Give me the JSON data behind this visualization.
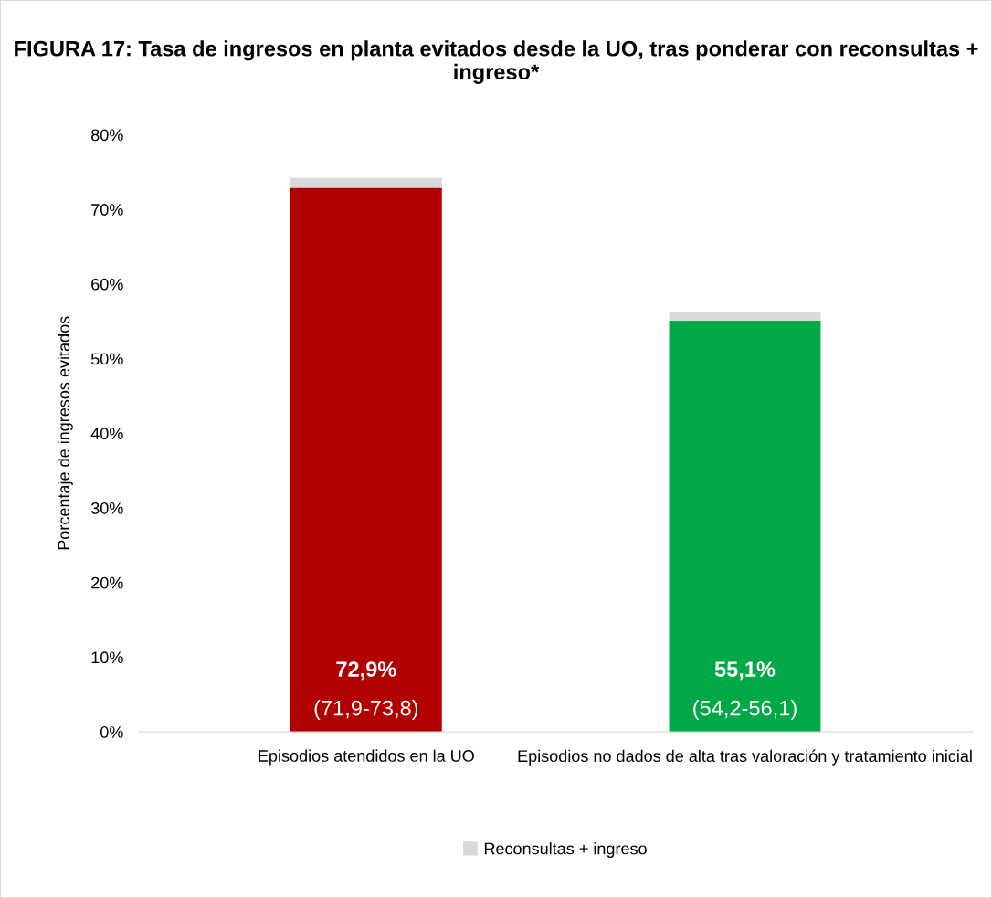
{
  "chart_data": {
    "type": "bar",
    "title": "FIGURA 17: Tasa de ingresos en planta evitados desde la UO, tras ponderar con reconsultas + ingreso*",
    "ylabel": "Porcentaje de ingresos evitados",
    "categories": [
      "Episodios atendidos en la UO",
      "Episodios no dados de alta tras valoración y tratamiento inicial"
    ],
    "stacked": true,
    "series": [
      {
        "colors": [
          "#b00000",
          "#00a848"
        ],
        "values": [
          72.9,
          55.1
        ],
        "value_labels": [
          "72,9%\n(71,9-73,8)",
          "55,1%\n(54,2-56,1)"
        ]
      },
      {
        "name": "Reconsultas + ingreso",
        "color": "#d9d9d9",
        "values": [
          1.3,
          1.1
        ]
      }
    ],
    "ylim": [
      0,
      80
    ],
    "yticks": [
      {
        "value": 0,
        "label": "0%"
      },
      {
        "value": 10,
        "label": "10%"
      },
      {
        "value": 20,
        "label": "20%"
      },
      {
        "value": 30,
        "label": "30%"
      },
      {
        "value": 40,
        "label": "40%"
      },
      {
        "value": 50,
        "label": "50%"
      },
      {
        "value": 60,
        "label": "60%"
      },
      {
        "value": 70,
        "label": "70%"
      },
      {
        "value": 80,
        "label": "80%"
      }
    ],
    "grid": false,
    "legend": "bottom"
  }
}
